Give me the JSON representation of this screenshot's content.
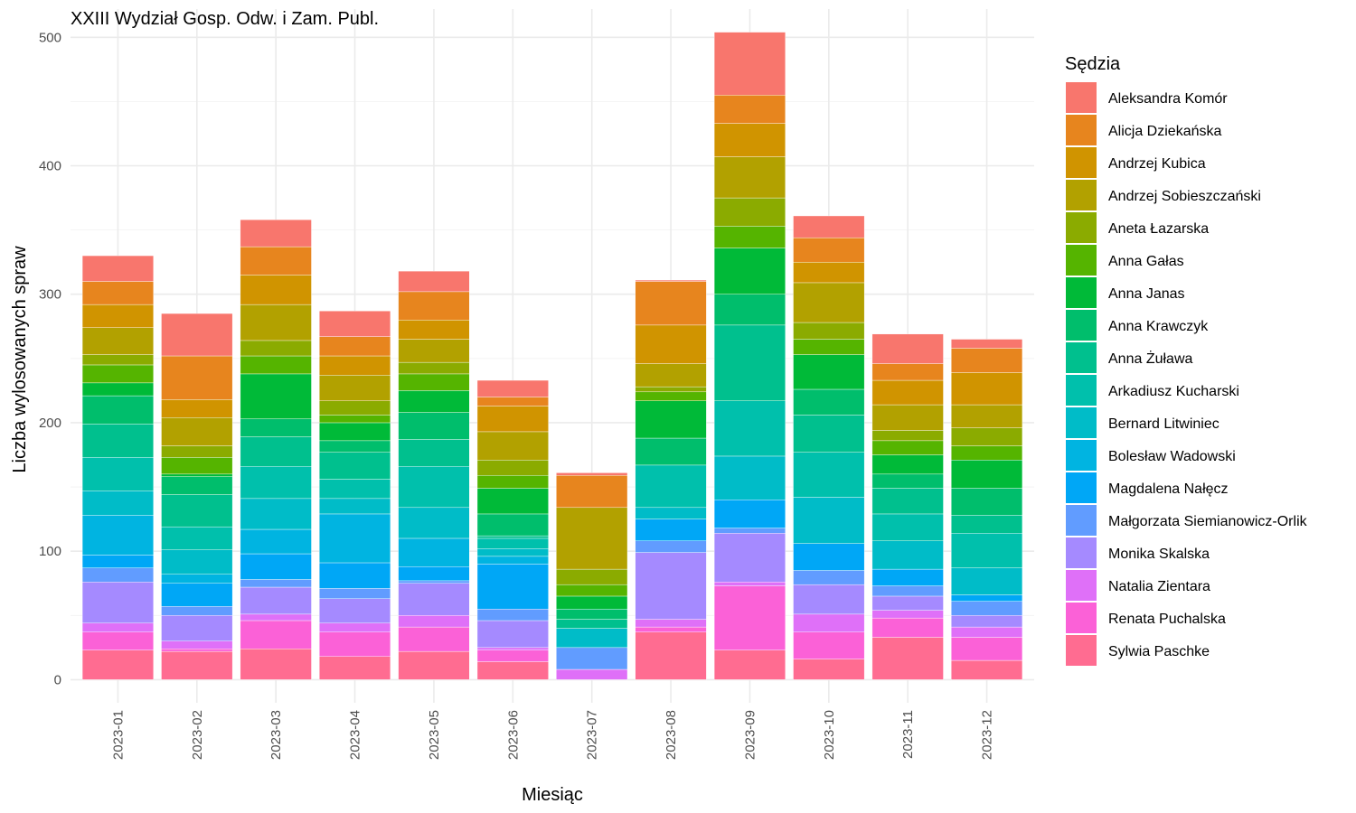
{
  "chart_data": {
    "type": "bar",
    "stacked": true,
    "title": "XXIII Wydział Gosp. Odw. i Zam. Publ.",
    "xlabel": "Miesiąc",
    "ylabel": "Liczba wylosowanych spraw",
    "ylim": [
      -18,
      522
    ],
    "yticks": [
      0,
      100,
      200,
      300,
      400,
      500
    ],
    "grid": true,
    "legend_title": "Sędzia",
    "legend_position": "right",
    "categories": [
      "2023-01",
      "2023-02",
      "2023-03",
      "2023-04",
      "2023-05",
      "2023-06",
      "2023-07",
      "2023-08",
      "2023-09",
      "2023-10",
      "2023-11",
      "2023-12"
    ],
    "series": [
      {
        "name": "Aleksandra Komór",
        "color": "#F8766D",
        "values": [
          20,
          33,
          21,
          20,
          16,
          13,
          2,
          1,
          49,
          17,
          23,
          7
        ]
      },
      {
        "name": "Alicja Dziekańska",
        "color": "#E7851E",
        "values": [
          18,
          34,
          22,
          15,
          22,
          7,
          25,
          34,
          22,
          19,
          13,
          19
        ]
      },
      {
        "name": "Andrzej Kubica",
        "color": "#D09400",
        "values": [
          18,
          14,
          23,
          15,
          15,
          20,
          0,
          30,
          26,
          16,
          19,
          25
        ]
      },
      {
        "name": "Andrzej Sobieszczański",
        "color": "#B2A100",
        "values": [
          21,
          22,
          28,
          20,
          18,
          22,
          48,
          18,
          32,
          31,
          20,
          18
        ]
      },
      {
        "name": "Aneta Łazarska",
        "color": "#8BAB00",
        "values": [
          8,
          9,
          12,
          11,
          9,
          12,
          12,
          4,
          22,
          13,
          8,
          14
        ]
      },
      {
        "name": "Anna Gałas",
        "color": "#55B400",
        "values": [
          14,
          13,
          14,
          6,
          13,
          10,
          9,
          7,
          17,
          12,
          11,
          11
        ]
      },
      {
        "name": "Anna Janas",
        "color": "#00BA38",
        "values": [
          10,
          2,
          35,
          14,
          17,
          20,
          10,
          29,
          36,
          27,
          15,
          22
        ]
      },
      {
        "name": "Anna Krawczyk",
        "color": "#00BE6C",
        "values": [
          22,
          14,
          14,
          9,
          21,
          17,
          8,
          21,
          24,
          20,
          11,
          21
        ]
      },
      {
        "name": "Anna Żuława",
        "color": "#00C08E",
        "values": [
          26,
          25,
          23,
          21,
          21,
          2,
          7,
          0,
          59,
          29,
          20,
          14
        ]
      },
      {
        "name": "Arkadiusz Kucharski",
        "color": "#00C0AC",
        "values": [
          26,
          18,
          25,
          15,
          32,
          8,
          0,
          33,
          43,
          35,
          21,
          27
        ]
      },
      {
        "name": "Bernard Litwiniec",
        "color": "#00BCC8",
        "values": [
          19,
          19,
          24,
          12,
          24,
          6,
          15,
          9,
          34,
          36,
          22,
          21
        ]
      },
      {
        "name": "Bolesław Wadowski",
        "color": "#00B4E1",
        "values": [
          31,
          7,
          19,
          38,
          22,
          6,
          0,
          0,
          0,
          0,
          0,
          0
        ]
      },
      {
        "name": "Magdalena Nałęcz",
        "color": "#00A7F6",
        "values": [
          10,
          18,
          20,
          20,
          11,
          35,
          0,
          17,
          22,
          21,
          13,
          5
        ]
      },
      {
        "name": "Małgorzata Siemianowicz-Orlik",
        "color": "#619CFF",
        "values": [
          11,
          7,
          6,
          8,
          2,
          9,
          17,
          9,
          4,
          11,
          8,
          11
        ]
      },
      {
        "name": "Monika Skalska",
        "color": "#A58AFF",
        "values": [
          32,
          20,
          21,
          19,
          25,
          21,
          0,
          52,
          38,
          23,
          11,
          9
        ]
      },
      {
        "name": "Natalia Zientara",
        "color": "#DF70F8",
        "values": [
          7,
          6,
          5,
          7,
          9,
          2,
          8,
          6,
          3,
          14,
          6,
          8
        ]
      },
      {
        "name": "Renata Puchalska",
        "color": "#FB61D7",
        "values": [
          14,
          2,
          22,
          19,
          19,
          9,
          0,
          4,
          50,
          21,
          15,
          18
        ]
      },
      {
        "name": "Sylwia Paschke",
        "color": "#FF6C91",
        "values": [
          23,
          22,
          24,
          18,
          22,
          14,
          0,
          37,
          23,
          16,
          33,
          15
        ]
      }
    ]
  }
}
